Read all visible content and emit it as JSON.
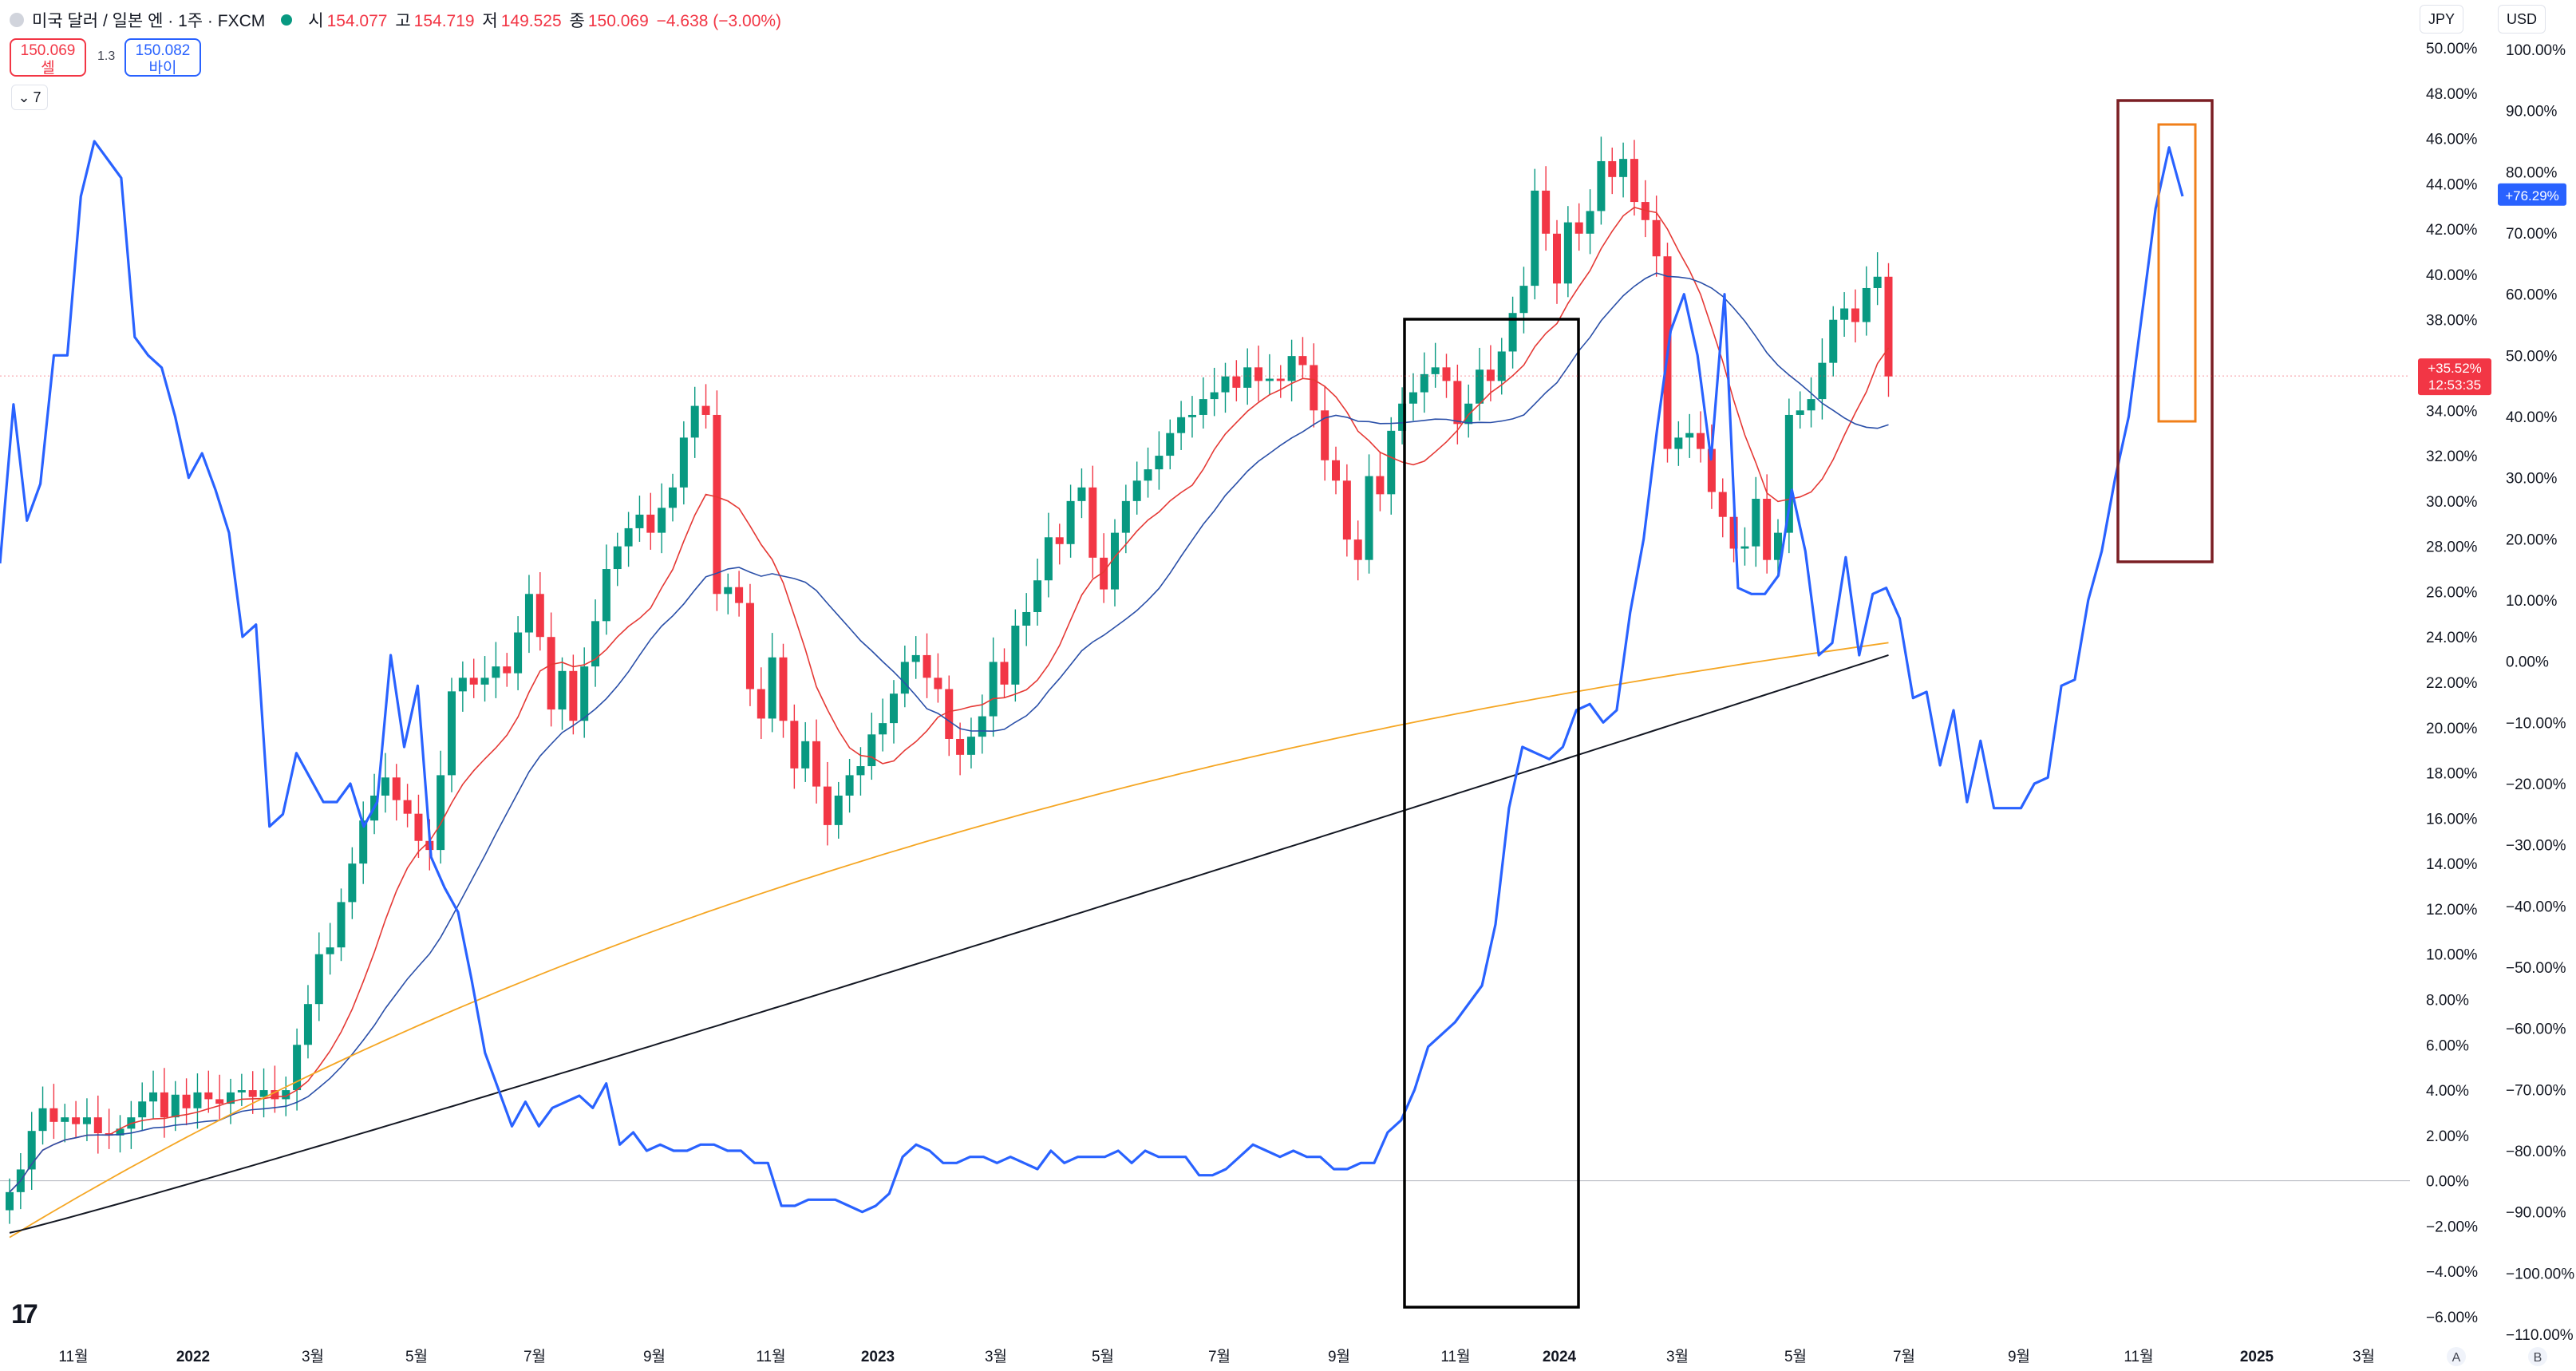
{
  "header": {
    "title": "미국 달러 / 일본 엔 · 1주 · FXCM",
    "open_label": "시",
    "open": "154.077",
    "high_label": "고",
    "high": "154.719",
    "low_label": "저",
    "low": "149.525",
    "close_label": "종",
    "close": "150.069",
    "change": "−4.638 (−3.00%)"
  },
  "trade": {
    "sell_price": "150.069",
    "sell_label": "셀",
    "buy_price": "150.082",
    "buy_label": "바이",
    "spread": "1.3"
  },
  "indicator_toggle": "7",
  "currency_left": "JPY",
  "currency_right": "USD",
  "bottom_buttons": [
    "A",
    "B"
  ],
  "colors": {
    "up": "#089981",
    "down": "#f23645",
    "ma_fast": "#e53935",
    "ma_mid": "#2a4fa8",
    "ma_slow": "#f5a623",
    "ma_long": "#131722",
    "overlay": "#2962ff",
    "box_black": "#000000",
    "box_maroon": "#7b1f24",
    "box_orange": "#f07f1a"
  },
  "chart_data": {
    "type": "candlestick",
    "x_labels": [
      "11월",
      "2022",
      "3월",
      "5월",
      "7월",
      "9월",
      "11월",
      "2023",
      "3월",
      "5월",
      "7월",
      "9월",
      "11월",
      "2024",
      "3월",
      "5월",
      "7월",
      "9월",
      "11월",
      "2025",
      "3월"
    ],
    "y_left_ticks": [
      "50.00%",
      "48.00%",
      "46.00%",
      "44.00%",
      "42.00%",
      "40.00%",
      "38.00%",
      "36.00%",
      "34.00%",
      "32.00%",
      "30.00%",
      "28.00%",
      "26.00%",
      "24.00%",
      "22.00%",
      "20.00%",
      "18.00%",
      "16.00%",
      "14.00%",
      "12.00%",
      "10.00%",
      "8.00%",
      "6.00%",
      "4.00%",
      "2.00%",
      "0.00%",
      "−2.00%",
      "−4.00%",
      "−6.00%"
    ],
    "y_right_ticks": [
      "100.00%",
      "90.00%",
      "80.00%",
      "70.00%",
      "60.00%",
      "50.00%",
      "40.00%",
      "30.00%",
      "20.00%",
      "10.00%",
      "0.00%",
      "−10.00%",
      "−20.00%",
      "−30.00%",
      "−40.00%",
      "−50.00%",
      "−60.00%",
      "−70.00%",
      "−80.00%",
      "−90.00%",
      "−100.00%",
      "−110.00%"
    ],
    "ylim_left": [
      -6,
      50
    ],
    "ylim_right": [
      -110,
      100
    ],
    "last_price_pct": "+35.52%",
    "countdown": "12:53:35",
    "overlay_last": "+76.29%",
    "candles_close_pct": [
      -0.5,
      0.5,
      2.2,
      3.2,
      2.6,
      2.8,
      2.5,
      2.8,
      2.1,
      2.0,
      2.3,
      2.8,
      3.5,
      3.9,
      2.8,
      3.8,
      3.2,
      3.9,
      3.6,
      3.4,
      3.9,
      4.0,
      3.7,
      4.0,
      3.6,
      4.0,
      6.0,
      7.8,
      10.0,
      10.3,
      12.3,
      14.0,
      15.9,
      17.0,
      17.8,
      16.8,
      16.2,
      15.0,
      14.6,
      17.9,
      21.6,
      22.2,
      21.9,
      22.2,
      22.7,
      22.4,
      24.2,
      25.9,
      24.0,
      20.8,
      22.5,
      20.3,
      22.7,
      24.7,
      27.0,
      28.0,
      28.8,
      29.4,
      28.6,
      29.7,
      30.6,
      32.8,
      34.2,
      33.8,
      25.9,
      26.2,
      25.5,
      21.7,
      20.4,
      23.1,
      20.3,
      18.2,
      19.4,
      17.4,
      15.7,
      17.0,
      17.9,
      18.3,
      19.7,
      20.2,
      21.5,
      22.9,
      23.2,
      22.2,
      21.7,
      19.5,
      18.8,
      19.6,
      20.5,
      22.9,
      21.9,
      24.5,
      25.1,
      26.5,
      28.4,
      28.1,
      30.0,
      30.6,
      27.5,
      26.1,
      28.6,
      30.0,
      30.9,
      31.4,
      32.0,
      33.0,
      33.7,
      33.8,
      34.5,
      34.8,
      35.5,
      35.0,
      35.9,
      35.3,
      35.4,
      35.3,
      36.4,
      36.0,
      34.0,
      31.8,
      30.9,
      28.3,
      27.4,
      31.1,
      30.3,
      33.1,
      34.3,
      34.8,
      35.6,
      35.9,
      35.3,
      33.4,
      34.3,
      35.8,
      35.3,
      36.6,
      38.3,
      39.5,
      43.7,
      41.8,
      39.6,
      42.3,
      41.8,
      42.8,
      45.0,
      44.3,
      45.1,
      43.2,
      42.4,
      40.8,
      32.3,
      32.8,
      33.0,
      32.3,
      30.4,
      29.3,
      27.9,
      28.0,
      30.1,
      27.4,
      28.6,
      33.8,
      34.0,
      34.5,
      36.1,
      38.0,
      38.5,
      37.9,
      39.4,
      39.9,
      35.5
    ],
    "overlay_pct_right": [
      16,
      42,
      23,
      29,
      50,
      50,
      76,
      85,
      82,
      79,
      53,
      50,
      48,
      40,
      30,
      34,
      28,
      21,
      4,
      6,
      -27,
      -25,
      -15,
      -19,
      -23,
      -23,
      -20,
      -27,
      -23,
      1,
      -14,
      -4,
      -32,
      -37,
      -41,
      -52,
      -64,
      -70,
      -76,
      -72,
      -76,
      -73,
      -72,
      -71,
      -73,
      -69,
      -79,
      -77,
      -80,
      -79,
      -80,
      -80,
      -79,
      -79,
      -80,
      -80,
      -82,
      -82,
      -89,
      -89,
      -88,
      -88,
      -88,
      -89,
      -90,
      -89,
      -87,
      -81,
      -79,
      -80,
      -82,
      -82,
      -81,
      -81,
      -82,
      -81,
      -82,
      -83,
      -80,
      -82,
      -81,
      -81,
      -81,
      -80,
      -82,
      -80,
      -81,
      -81,
      -81,
      -84,
      -84,
      -83,
      -81,
      -79,
      -80,
      -81,
      -80,
      -81,
      -81,
      -83,
      -83,
      -82,
      -82,
      -77,
      -75,
      -70,
      -63,
      -61,
      -59,
      -56,
      -53,
      -43,
      -24,
      -14,
      -15,
      -16,
      -14,
      -8,
      -7,
      -10,
      -8,
      8,
      20,
      38,
      54,
      60,
      50,
      33,
      60,
      12,
      11,
      11,
      14,
      28,
      18,
      1,
      3,
      17,
      1,
      11,
      12,
      7,
      -6,
      -5,
      -17,
      -8,
      -23,
      -13,
      -24,
      -24,
      -24,
      -20,
      -19,
      -4,
      -3,
      10,
      18,
      30,
      40,
      57,
      74,
      84,
      76
    ]
  }
}
